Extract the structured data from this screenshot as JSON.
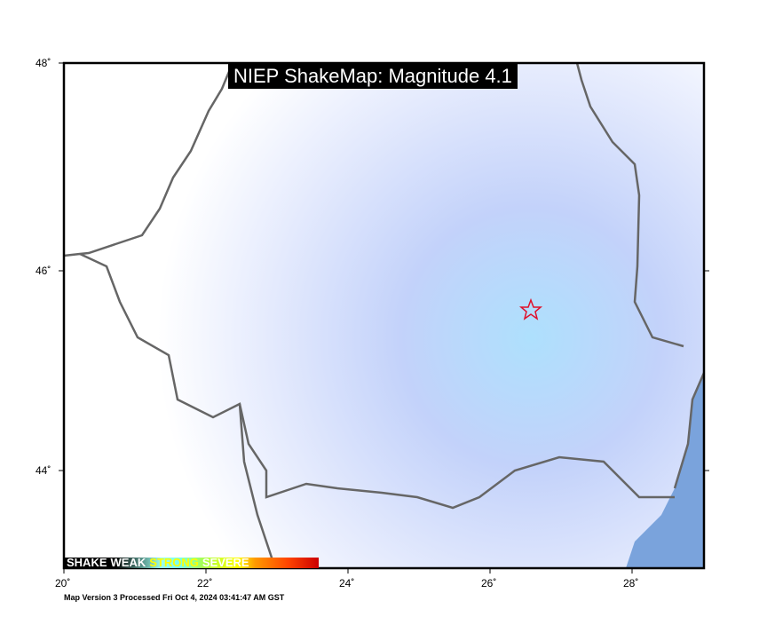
{
  "title": "NIEP ShakeMap: Magnitude 4.1",
  "footer": "Map Version 3 Processed Fri Oct  4, 2024 03:41:47 AM GST",
  "lon_ticks": [
    "20˚",
    "22˚",
    "24˚",
    "26˚",
    "28˚"
  ],
  "lat_ticks": [
    "48˚",
    "46˚",
    "44˚"
  ],
  "legend": {
    "labels": [
      "SHAKE",
      "WEAK",
      "STRONG",
      "SEVERE"
    ]
  },
  "epicenter": {
    "marker": "star-icon",
    "color": "#e0102a"
  },
  "colors": {
    "sea": "#7aa3dc",
    "border": "#666666",
    "shaking": "#a9d4fb"
  }
}
